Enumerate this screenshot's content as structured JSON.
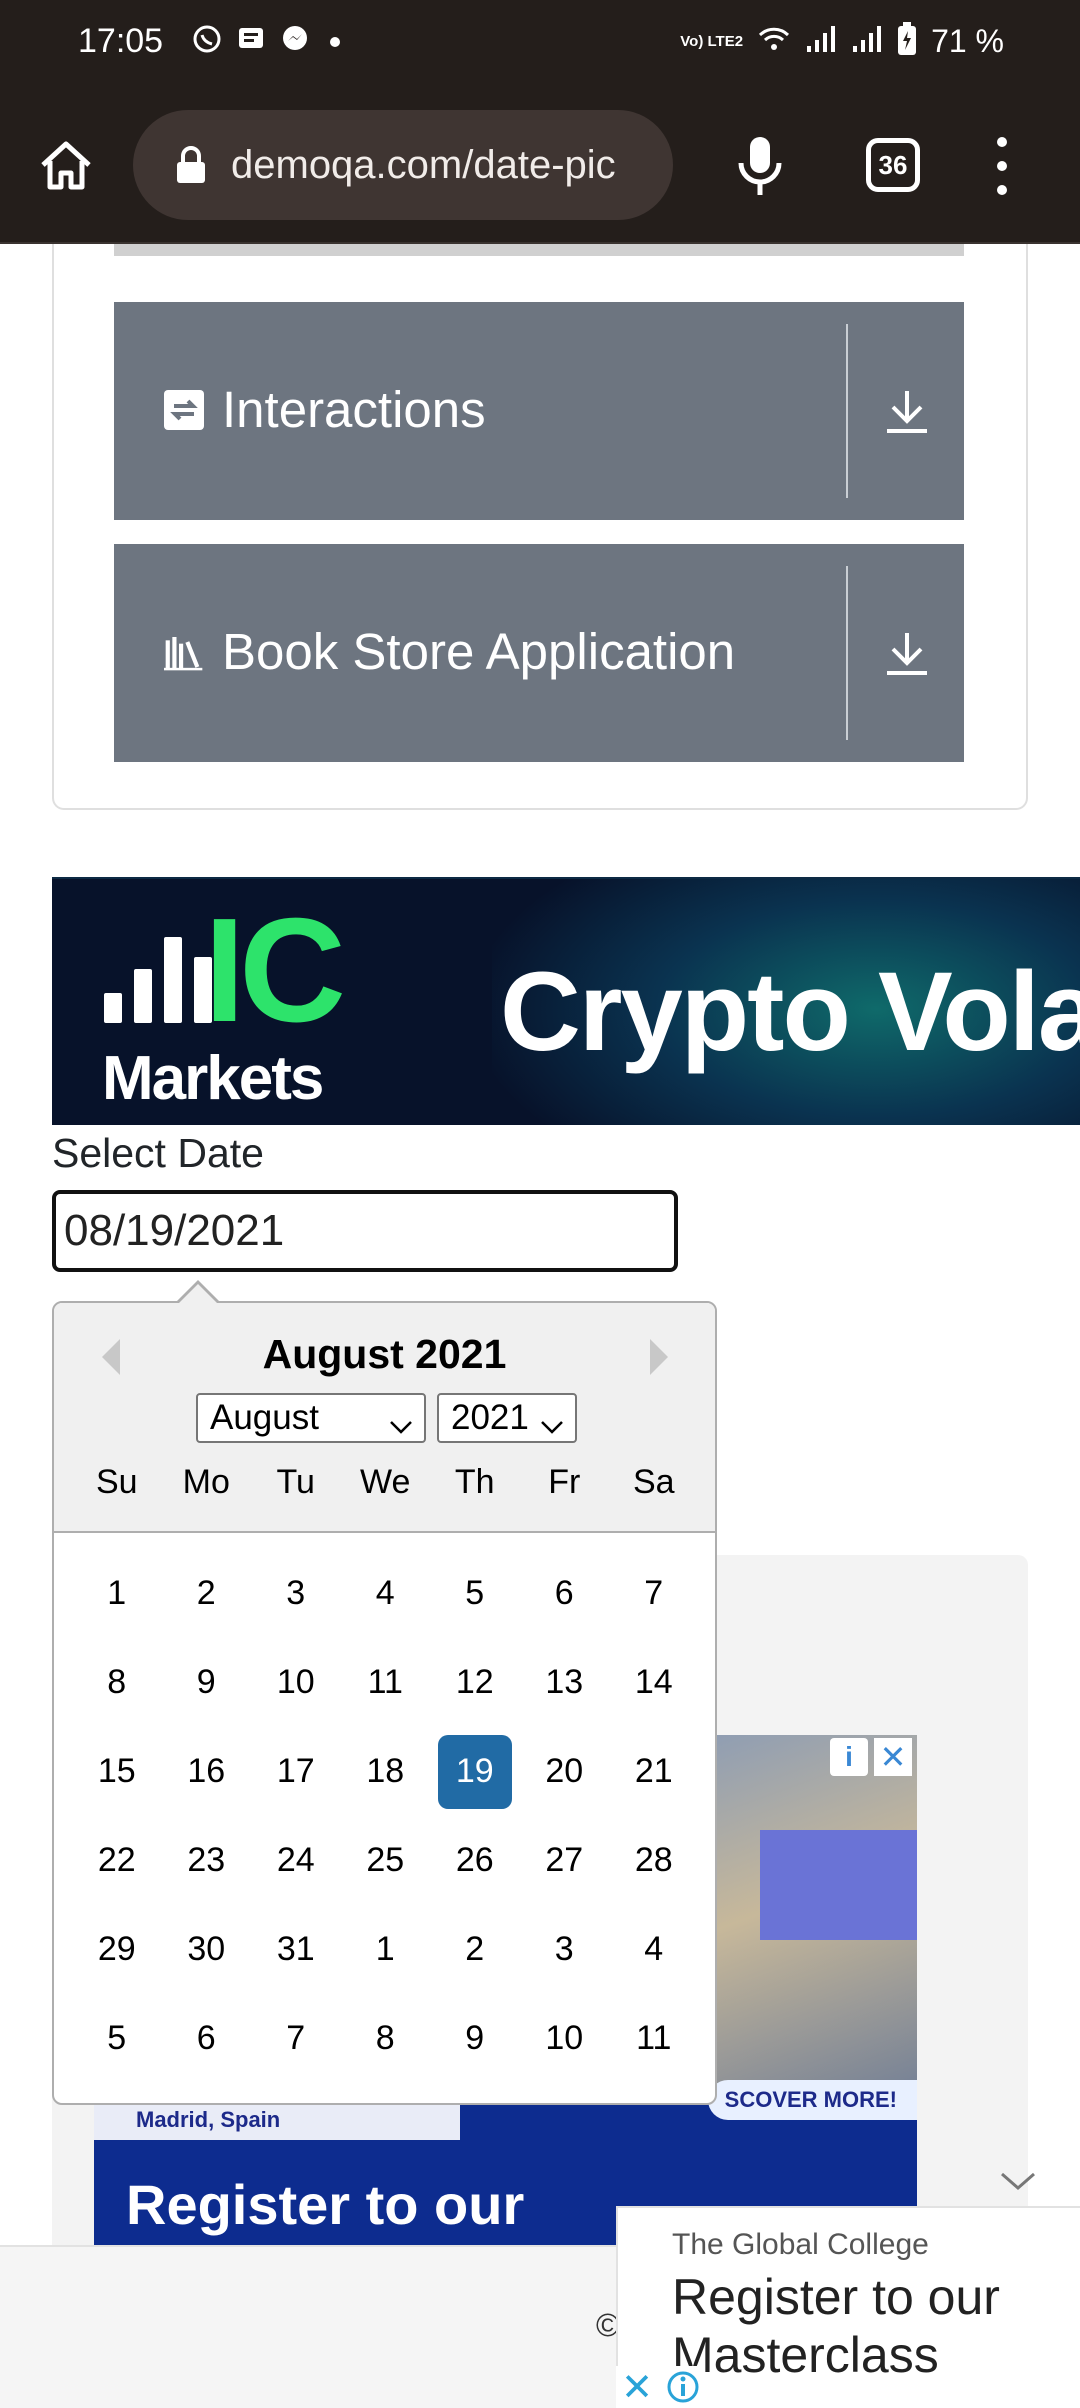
{
  "status_bar": {
    "time": "17:05",
    "network_label": "Vo) LTE2",
    "battery": "71 %",
    "notification_icons": [
      "whatsapp-icon",
      "message-icon",
      "messenger-icon",
      "dot-icon"
    ],
    "system_icons": [
      "wifi-icon",
      "signal-icon",
      "signal-icon",
      "battery-charging-icon"
    ]
  },
  "browser": {
    "url": "demoqa.com/date-pic",
    "tab_count": "36",
    "icons": [
      "home-icon",
      "lock-icon",
      "mic-icon",
      "tabs-icon",
      "more-vert-icon"
    ]
  },
  "side_menu": {
    "groups": [
      {
        "title": "Interactions",
        "icon": "swap-icon"
      },
      {
        "title": "Book Store Application",
        "icon": "books-icon"
      }
    ],
    "toggle_icon": "download-icon"
  },
  "ad_banner": {
    "logo_ic": "IC",
    "logo_markets": "Markets",
    "headline": "Crypto Vola",
    "colors": {
      "logo_green": "#2de36b",
      "background": "#07122a"
    }
  },
  "form": {
    "label": "Select Date",
    "value": "08/19/2021"
  },
  "date_picker": {
    "title": "August 2021",
    "month_select": "August",
    "year_select": "2021",
    "selected_day": "19",
    "selected_color": "#216ba5",
    "weekdays": [
      "Su",
      "Mo",
      "Tu",
      "We",
      "Th",
      "Fr",
      "Sa"
    ],
    "weeks": [
      [
        "1",
        "2",
        "3",
        "4",
        "5",
        "6",
        "7"
      ],
      [
        "8",
        "9",
        "10",
        "11",
        "12",
        "13",
        "14"
      ],
      [
        "15",
        "16",
        "17",
        "18",
        "19",
        "20",
        "21"
      ],
      [
        "22",
        "23",
        "24",
        "25",
        "26",
        "27",
        "28"
      ],
      [
        "29",
        "30",
        "31",
        "1",
        "2",
        "3",
        "4"
      ],
      [
        "5",
        "6",
        "7",
        "8",
        "9",
        "10",
        "11"
      ]
    ]
  },
  "background_ad": {
    "place": "Madrid, Spain",
    "discover": "SCOVER MORE!",
    "register": "Register to our"
  },
  "footer": {
    "copyright": "©"
  },
  "sticky_ad": {
    "brand": "The Global College",
    "headline": "Register to our Masterclass"
  }
}
